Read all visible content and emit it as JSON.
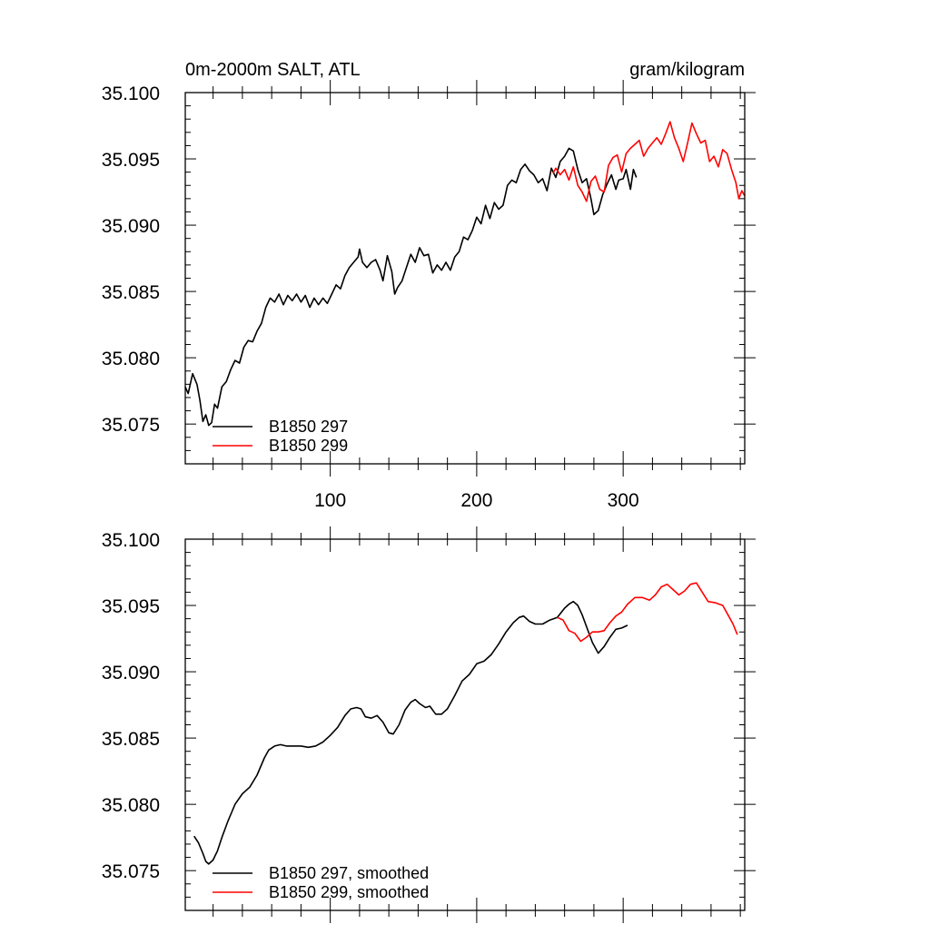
{
  "chart_data": [
    {
      "type": "line",
      "title": "0m-2000m SALT, ATL",
      "units": "gram/kilogram",
      "xlim": [
        1,
        383
      ],
      "ylim": [
        35.072,
        35.1
      ],
      "xticks": [
        100,
        200,
        300
      ],
      "xtick_labels": [
        "100",
        "200",
        "300"
      ],
      "yticks": [
        35.075,
        35.08,
        35.085,
        35.09,
        35.095,
        35.1
      ],
      "ytick_labels": [
        "35.075",
        "35.080",
        "35.085",
        "35.090",
        "35.095",
        "35.100"
      ],
      "legend_position": "bottom-left",
      "series": [
        {
          "name": "B1850 297",
          "color": "#000000",
          "points": [
            [
              1,
              35.0778
            ],
            [
              3,
              35.0773
            ],
            [
              6,
              35.0788
            ],
            [
              9,
              35.078
            ],
            [
              11,
              35.0768
            ],
            [
              13,
              35.0752
            ],
            [
              15,
              35.0757
            ],
            [
              17,
              35.0749
            ],
            [
              19,
              35.0751
            ],
            [
              21,
              35.0765
            ],
            [
              23,
              35.0762
            ],
            [
              26,
              35.0778
            ],
            [
              29,
              35.0782
            ],
            [
              32,
              35.0791
            ],
            [
              35,
              35.0798
            ],
            [
              38,
              35.0796
            ],
            [
              41,
              35.0808
            ],
            [
              44,
              35.0813
            ],
            [
              47,
              35.0812
            ],
            [
              50,
              35.082
            ],
            [
              53,
              35.0826
            ],
            [
              56,
              35.0838
            ],
            [
              59,
              35.0845
            ],
            [
              62,
              35.0842
            ],
            [
              65,
              35.0848
            ],
            [
              68,
              35.084
            ],
            [
              71,
              35.0847
            ],
            [
              74,
              35.0843
            ],
            [
              77,
              35.0848
            ],
            [
              80,
              35.0842
            ],
            [
              83,
              35.0847
            ],
            [
              86,
              35.0838
            ],
            [
              89,
              35.0845
            ],
            [
              92,
              35.084
            ],
            [
              95,
              35.0845
            ],
            [
              98,
              35.0841
            ],
            [
              101,
              35.0848
            ],
            [
              104,
              35.0855
            ],
            [
              107,
              35.0852
            ],
            [
              110,
              35.0862
            ],
            [
              113,
              35.0868
            ],
            [
              116,
              35.0872
            ],
            [
              119,
              35.0876
            ],
            [
              120,
              35.0882
            ],
            [
              122,
              35.0872
            ],
            [
              125,
              35.0868
            ],
            [
              128,
              35.0872
            ],
            [
              131,
              35.0874
            ],
            [
              134,
              35.0866
            ],
            [
              136,
              35.0858
            ],
            [
              139,
              35.0877
            ],
            [
              142,
              35.0865
            ],
            [
              144,
              35.0848
            ],
            [
              146,
              35.0853
            ],
            [
              149,
              35.0858
            ],
            [
              152,
              35.0868
            ],
            [
              155,
              35.0878
            ],
            [
              158,
              35.0872
            ],
            [
              161,
              35.0883
            ],
            [
              164,
              35.0877
            ],
            [
              167,
              35.0878
            ],
            [
              170,
              35.0864
            ],
            [
              173,
              35.087
            ],
            [
              176,
              35.0866
            ],
            [
              179,
              35.0872
            ],
            [
              182,
              35.0866
            ],
            [
              185,
              35.0876
            ],
            [
              188,
              35.088
            ],
            [
              191,
              35.0891
            ],
            [
              194,
              35.0889
            ],
            [
              197,
              35.0896
            ],
            [
              200,
              35.0906
            ],
            [
              203,
              35.0901
            ],
            [
              206,
              35.0915
            ],
            [
              209,
              35.0905
            ],
            [
              212,
              35.0917
            ],
            [
              215,
              35.0912
            ],
            [
              218,
              35.0915
            ],
            [
              221,
              35.093
            ],
            [
              224,
              35.0934
            ],
            [
              227,
              35.0932
            ],
            [
              230,
              35.0942
            ],
            [
              233,
              35.0946
            ],
            [
              236,
              35.0941
            ],
            [
              239,
              35.0938
            ],
            [
              242,
              35.0932
            ],
            [
              245,
              35.0935
            ],
            [
              248,
              35.0926
            ],
            [
              251,
              35.0943
            ],
            [
              254,
              35.0936
            ],
            [
              257,
              35.0948
            ],
            [
              260,
              35.0952
            ],
            [
              263,
              35.0958
            ],
            [
              266,
              35.0956
            ],
            [
              269,
              35.0942
            ],
            [
              272,
              35.0932
            ],
            [
              275,
              35.0935
            ],
            [
              278,
              35.092
            ],
            [
              280,
              35.0908
            ],
            [
              283,
              35.0911
            ],
            [
              286,
              35.0923
            ],
            [
              289,
              35.0931
            ],
            [
              292,
              35.0938
            ],
            [
              295,
              35.0927
            ],
            [
              297,
              35.0934
            ],
            [
              300,
              35.0935
            ],
            [
              302,
              35.0942
            ],
            [
              305,
              35.0927
            ],
            [
              307,
              35.0942
            ],
            [
              309,
              35.0936
            ]
          ]
        },
        {
          "name": "B1850 299",
          "color": "#ff0000",
          "points": [
            [
              252,
              35.0939
            ],
            [
              254,
              35.0943
            ],
            [
              257,
              35.0938
            ],
            [
              260,
              35.0942
            ],
            [
              263,
              35.0934
            ],
            [
              266,
              35.0944
            ],
            [
              269,
              35.093
            ],
            [
              272,
              35.0925
            ],
            [
              275,
              35.0918
            ],
            [
              278,
              35.0933
            ],
            [
              281,
              35.0937
            ],
            [
              284,
              35.0927
            ],
            [
              287,
              35.0925
            ],
            [
              290,
              35.0945
            ],
            [
              293,
              35.0951
            ],
            [
              296,
              35.0953
            ],
            [
              299,
              35.094
            ],
            [
              302,
              35.0954
            ],
            [
              305,
              35.0958
            ],
            [
              308,
              35.0961
            ],
            [
              311,
              35.0964
            ],
            [
              314,
              35.0952
            ],
            [
              317,
              35.0958
            ],
            [
              320,
              35.0962
            ],
            [
              323,
              35.0966
            ],
            [
              326,
              35.0961
            ],
            [
              329,
              35.0969
            ],
            [
              332,
              35.0978
            ],
            [
              335,
              35.0966
            ],
            [
              338,
              35.0958
            ],
            [
              341,
              35.0948
            ],
            [
              344,
              35.0962
            ],
            [
              347,
              35.0977
            ],
            [
              350,
              35.0969
            ],
            [
              353,
              35.0962
            ],
            [
              356,
              35.0964
            ],
            [
              359,
              35.0948
            ],
            [
              362,
              35.0952
            ],
            [
              365,
              35.0944
            ],
            [
              368,
              35.0957
            ],
            [
              371,
              35.0954
            ],
            [
              374,
              35.0942
            ],
            [
              377,
              35.0932
            ],
            [
              379,
              35.092
            ],
            [
              381,
              35.0926
            ],
            [
              383,
              35.0922
            ]
          ]
        }
      ]
    },
    {
      "type": "line",
      "xlim": [
        1,
        383
      ],
      "ylim": [
        35.072,
        35.1
      ],
      "xticks": [
        100,
        200,
        300
      ],
      "yticks": [
        35.075,
        35.08,
        35.085,
        35.09,
        35.095,
        35.1
      ],
      "ytick_labels": [
        "35.075",
        "35.080",
        "35.085",
        "35.090",
        "35.095",
        "35.100"
      ],
      "legend_position": "bottom-left",
      "series": [
        {
          "name": "B1850 297, smoothed",
          "color": "#000000",
          "points": [
            [
              7,
              35.0776
            ],
            [
              10,
              35.0771
            ],
            [
              13,
              35.0763
            ],
            [
              15,
              35.0757
            ],
            [
              17,
              35.0755
            ],
            [
              20,
              35.0758
            ],
            [
              23,
              35.0765
            ],
            [
              26,
              35.0775
            ],
            [
              30,
              35.0787
            ],
            [
              35,
              35.08
            ],
            [
              40,
              35.0808
            ],
            [
              45,
              35.0813
            ],
            [
              50,
              35.0822
            ],
            [
              55,
              35.0835
            ],
            [
              58,
              35.0841
            ],
            [
              62,
              35.0844
            ],
            [
              66,
              35.0845
            ],
            [
              70,
              35.0844
            ],
            [
              75,
              35.0844
            ],
            [
              80,
              35.0844
            ],
            [
              85,
              35.0843
            ],
            [
              90,
              35.0844
            ],
            [
              95,
              35.0847
            ],
            [
              100,
              35.0852
            ],
            [
              105,
              35.0858
            ],
            [
              110,
              35.0867
            ],
            [
              114,
              35.0872
            ],
            [
              118,
              35.0873
            ],
            [
              121,
              35.0872
            ],
            [
              124,
              35.0866
            ],
            [
              128,
              35.0865
            ],
            [
              132,
              35.0867
            ],
            [
              136,
              35.0862
            ],
            [
              140,
              35.0854
            ],
            [
              143,
              35.0853
            ],
            [
              147,
              35.086
            ],
            [
              151,
              35.0871
            ],
            [
              155,
              35.0877
            ],
            [
              158,
              35.0879
            ],
            [
              161,
              35.0876
            ],
            [
              165,
              35.0873
            ],
            [
              168,
              35.0874
            ],
            [
              172,
              35.0868
            ],
            [
              176,
              35.0868
            ],
            [
              180,
              35.0872
            ],
            [
              185,
              35.0882
            ],
            [
              190,
              35.0893
            ],
            [
              195,
              35.0898
            ],
            [
              200,
              35.0906
            ],
            [
              205,
              35.0908
            ],
            [
              210,
              35.0913
            ],
            [
              215,
              35.0921
            ],
            [
              220,
              35.093
            ],
            [
              225,
              35.0937
            ],
            [
              229,
              35.0941
            ],
            [
              232,
              35.0942
            ],
            [
              236,
              35.0938
            ],
            [
              240,
              35.0936
            ],
            [
              245,
              35.0936
            ],
            [
              250,
              35.0939
            ],
            [
              255,
              35.0941
            ],
            [
              260,
              35.0948
            ],
            [
              263,
              35.0951
            ],
            [
              266,
              35.0953
            ],
            [
              269,
              35.095
            ],
            [
              272,
              35.0943
            ],
            [
              275,
              35.0934
            ],
            [
              279,
              35.0922
            ],
            [
              283,
              35.0914
            ],
            [
              287,
              35.0919
            ],
            [
              291,
              35.0926
            ],
            [
              295,
              35.0932
            ],
            [
              299,
              35.0933
            ],
            [
              303,
              35.0935
            ]
          ]
        },
        {
          "name": "B1850 299, smoothed",
          "color": "#ff0000",
          "points": [
            [
              255,
              35.0941
            ],
            [
              259,
              35.0939
            ],
            [
              263,
              35.0931
            ],
            [
              267,
              35.0929
            ],
            [
              271,
              35.0923
            ],
            [
              275,
              35.0926
            ],
            [
              279,
              35.093
            ],
            [
              283,
              35.093
            ],
            [
              287,
              35.0931
            ],
            [
              291,
              35.0937
            ],
            [
              295,
              35.0942
            ],
            [
              299,
              35.0945
            ],
            [
              303,
              35.0951
            ],
            [
              308,
              35.0956
            ],
            [
              313,
              35.0956
            ],
            [
              318,
              35.0954
            ],
            [
              322,
              35.0958
            ],
            [
              326,
              35.0964
            ],
            [
              330,
              35.0966
            ],
            [
              334,
              35.0962
            ],
            [
              338,
              35.0958
            ],
            [
              342,
              35.0961
            ],
            [
              346,
              35.0966
            ],
            [
              350,
              35.0967
            ],
            [
              354,
              35.096
            ],
            [
              358,
              35.0953
            ],
            [
              363,
              35.0952
            ],
            [
              368,
              35.095
            ],
            [
              372,
              35.0942
            ],
            [
              375,
              35.0936
            ],
            [
              378,
              35.0928
            ]
          ]
        }
      ]
    }
  ]
}
